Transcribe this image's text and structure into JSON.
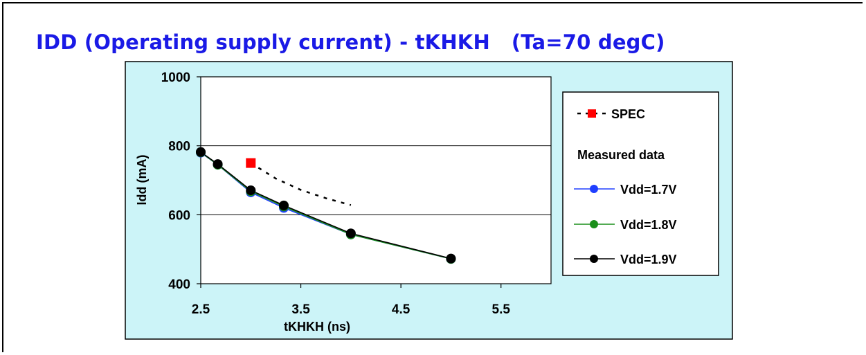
{
  "title": "IDD (Operating supply current) - tKHKH   (Ta=70 degC)",
  "colors": {
    "title": "#1a1ae6",
    "chart_background": "#ccf4f8",
    "plot_background": "#ffffff",
    "spec": "#ff0000",
    "vdd17": "#1f3fff",
    "vdd18": "#1a8f1a",
    "vdd19": "#000000"
  },
  "legend": {
    "spec_label": "SPEC",
    "heading": "Measured data",
    "items": [
      "Vdd=1.7V",
      "Vdd=1.8V",
      "Vdd=1.9V"
    ]
  },
  "chart_data": {
    "type": "line",
    "title": "IDD (Operating supply current) - tKHKH   (Ta=70 degC)",
    "xlabel": "tKHKH  (ns)",
    "ylabel": "Idd  (mA)",
    "xlim": [
      2.5,
      6.0
    ],
    "ylim": [
      400,
      1000
    ],
    "xticks": [
      2.5,
      3.5,
      4.5,
      5.5
    ],
    "yticks": [
      400,
      600,
      800,
      1000
    ],
    "grid": "horizontal",
    "legend_position": "right",
    "series": [
      {
        "name": "SPEC",
        "style": "dotted",
        "marker": "square",
        "x": [
          3.0,
          3.25,
          3.5,
          3.75,
          4.0
        ],
        "y": [
          750,
          705,
          672,
          648,
          628
        ]
      },
      {
        "name": "Vdd=1.7V",
        "style": "solid",
        "marker": "circle",
        "x": [
          2.5,
          2.67,
          3.0,
          3.33,
          4.0,
          5.0
        ],
        "y": [
          780,
          745,
          665,
          620,
          543,
          472
        ]
      },
      {
        "name": "Vdd=1.8V",
        "style": "solid",
        "marker": "circle",
        "x": [
          2.5,
          2.67,
          3.0,
          3.33,
          4.0,
          5.0
        ],
        "y": [
          781,
          745,
          668,
          624,
          543,
          472
        ]
      },
      {
        "name": "Vdd=1.9V",
        "style": "solid",
        "marker": "circle",
        "x": [
          2.5,
          2.67,
          3.0,
          3.33,
          4.0,
          5.0
        ],
        "y": [
          782,
          747,
          671,
          627,
          546,
          473
        ]
      }
    ]
  }
}
